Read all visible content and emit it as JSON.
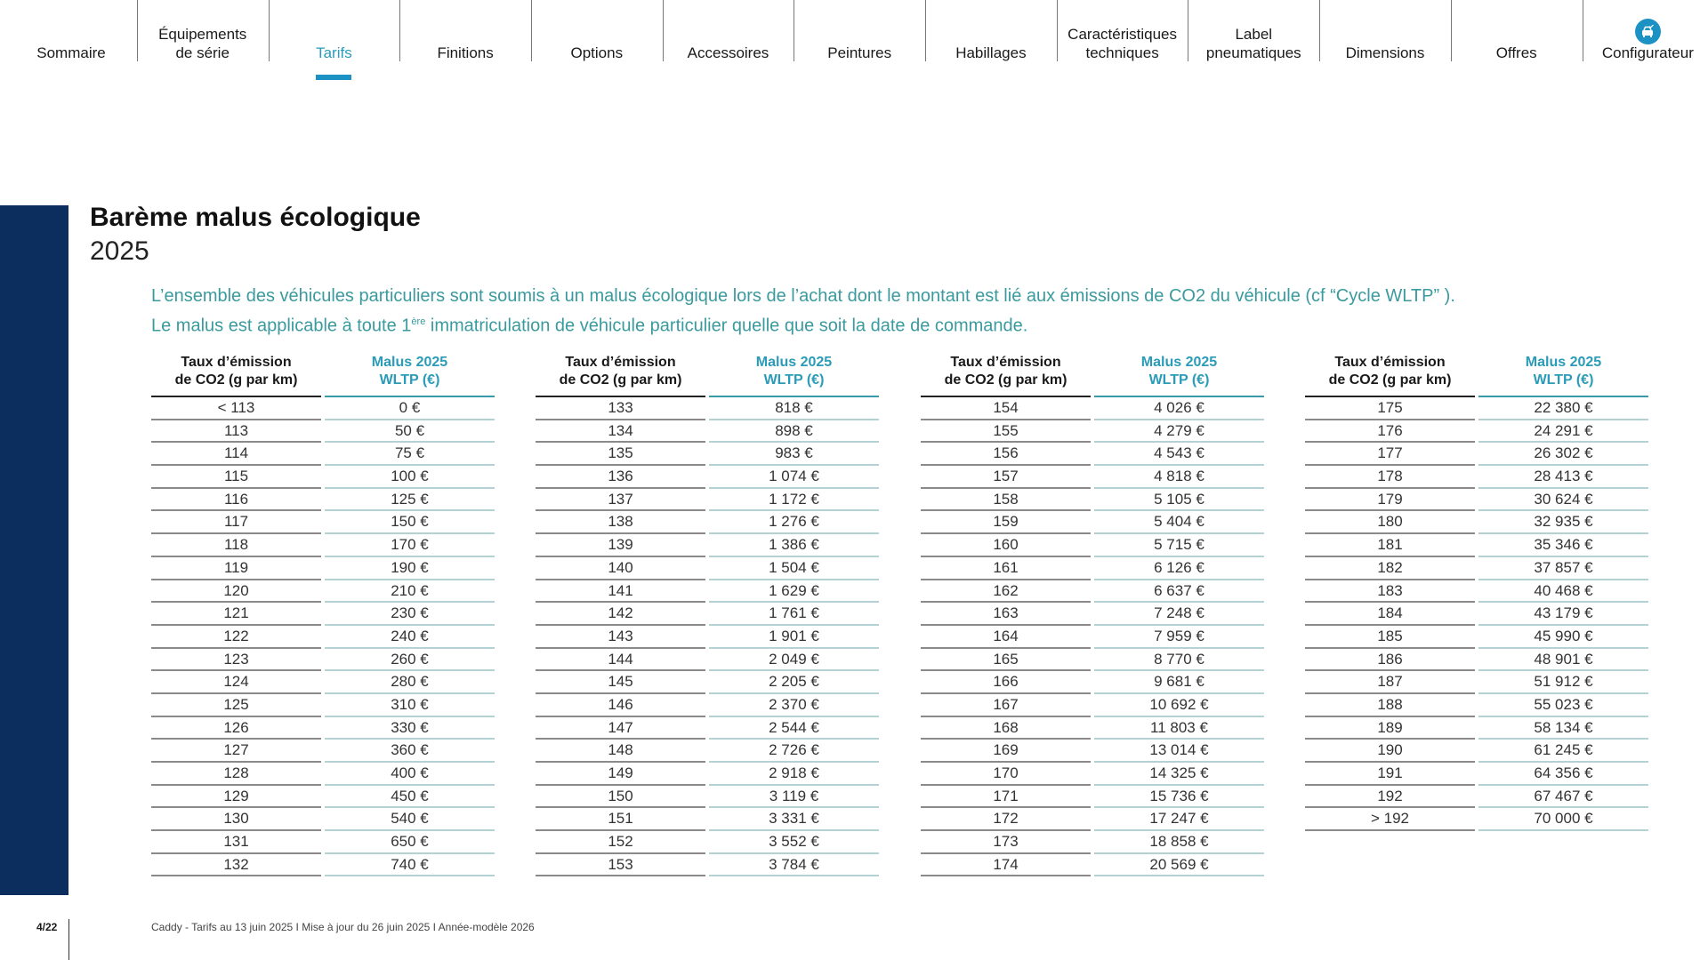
{
  "nav": {
    "items": [
      {
        "label": "Sommaire"
      },
      {
        "label": "Équipements\nde série"
      },
      {
        "label": "Tarifs",
        "active": true
      },
      {
        "label": "Finitions"
      },
      {
        "label": "Options"
      },
      {
        "label": "Accessoires"
      },
      {
        "label": "Peintures"
      },
      {
        "label": "Habillages"
      },
      {
        "label": "Caractéristiques\ntechniques"
      },
      {
        "label": "Label\npneumatiques"
      },
      {
        "label": "Dimensions"
      },
      {
        "label": "Offres"
      },
      {
        "label": "Configurateur",
        "icon": "car-configurator-icon"
      }
    ]
  },
  "colors": {
    "accent": "#1c92c4",
    "sidebar": "#0c2e5e",
    "text_teal": "#3a9a9e"
  },
  "page": {
    "title": "Barème malus écologique",
    "year": "2025",
    "desc_line1": "L’ensemble des véhicules particuliers sont soumis à un malus écologique lors de l’achat dont le montant est lié aux émissions de CO2 du véhicule (cf “Cycle WLTP” ).",
    "desc_line2_a": "Le malus est applicable à toute 1",
    "desc_line2_sup": "ère",
    "desc_line2_b": " immatriculation de véhicule particulier quelle que soit la date de commande."
  },
  "table": {
    "header_col1": "Taux d’émission\nde CO2  (g par km)",
    "header_col2": "Malus 2025\nWLTP (€)",
    "groups": [
      [
        [
          "< 113",
          "0 €"
        ],
        [
          "113",
          "50 €"
        ],
        [
          "114",
          "75 €"
        ],
        [
          "115",
          "100 €"
        ],
        [
          "116",
          "125 €"
        ],
        [
          "117",
          "150 €"
        ],
        [
          "118",
          "170 €"
        ],
        [
          "119",
          "190 €"
        ],
        [
          "120",
          "210 €"
        ],
        [
          "121",
          "230 €"
        ],
        [
          "122",
          "240 €"
        ],
        [
          "123",
          "260 €"
        ],
        [
          "124",
          "280 €"
        ],
        [
          "125",
          "310 €"
        ],
        [
          "126",
          "330 €"
        ],
        [
          "127",
          "360 €"
        ],
        [
          "128",
          "400 €"
        ],
        [
          "129",
          "450 €"
        ],
        [
          "130",
          "540 €"
        ],
        [
          "131",
          "650 €"
        ],
        [
          "132",
          "740 €"
        ]
      ],
      [
        [
          "133",
          "818 €"
        ],
        [
          "134",
          "898 €"
        ],
        [
          "135",
          "983 €"
        ],
        [
          "136",
          "1 074 €"
        ],
        [
          "137",
          "1 172 €"
        ],
        [
          "138",
          "1 276 €"
        ],
        [
          "139",
          "1 386 €"
        ],
        [
          "140",
          "1 504 €"
        ],
        [
          "141",
          "1 629 €"
        ],
        [
          "142",
          "1 761 €"
        ],
        [
          "143",
          "1 901 €"
        ],
        [
          "144",
          "2 049 €"
        ],
        [
          "145",
          "2 205 €"
        ],
        [
          "146",
          "2 370 €"
        ],
        [
          "147",
          "2 544 €"
        ],
        [
          "148",
          "2 726 €"
        ],
        [
          "149",
          "2 918 €"
        ],
        [
          "150",
          "3 119 €"
        ],
        [
          "151",
          "3 331 €"
        ],
        [
          "152",
          "3 552 €"
        ],
        [
          "153",
          "3 784 €"
        ]
      ],
      [
        [
          "154",
          "4 026 €"
        ],
        [
          "155",
          "4 279 €"
        ],
        [
          "156",
          "4 543 €"
        ],
        [
          "157",
          "4 818 €"
        ],
        [
          "158",
          "5 105 €"
        ],
        [
          "159",
          "5 404 €"
        ],
        [
          "160",
          "5 715 €"
        ],
        [
          "161",
          "6 126 €"
        ],
        [
          "162",
          "6 637 €"
        ],
        [
          "163",
          "7 248 €"
        ],
        [
          "164",
          "7 959 €"
        ],
        [
          "165",
          "8 770 €"
        ],
        [
          "166",
          "9 681 €"
        ],
        [
          "167",
          "10 692 €"
        ],
        [
          "168",
          "11 803 €"
        ],
        [
          "169",
          "13 014 €"
        ],
        [
          "170",
          "14 325 €"
        ],
        [
          "171",
          "15 736 €"
        ],
        [
          "172",
          "17 247 €"
        ],
        [
          "173",
          "18 858 €"
        ],
        [
          "174",
          "20 569 €"
        ]
      ],
      [
        [
          "175",
          "22 380 €"
        ],
        [
          "176",
          "24 291 €"
        ],
        [
          "177",
          "26 302 €"
        ],
        [
          "178",
          "28 413 €"
        ],
        [
          "179",
          "30 624 €"
        ],
        [
          "180",
          "32 935 €"
        ],
        [
          "181",
          "35 346 €"
        ],
        [
          "182",
          "37 857 €"
        ],
        [
          "183",
          "40 468 €"
        ],
        [
          "184",
          "43 179 €"
        ],
        [
          "185",
          "45 990 €"
        ],
        [
          "186",
          "48 901 €"
        ],
        [
          "187",
          "51 912 €"
        ],
        [
          "188",
          "55 023 €"
        ],
        [
          "189",
          "58 134 €"
        ],
        [
          "190",
          "61 245 €"
        ],
        [
          "191",
          "64 356 €"
        ],
        [
          "192",
          "67 467 €"
        ],
        [
          "> 192",
          "70 000 €"
        ]
      ]
    ]
  },
  "footer": {
    "page": "4/22",
    "text": "Caddy - Tarifs au 13 juin 2025 I Mise à jour du 26 juin 2025 I Année-modèle 2026"
  }
}
